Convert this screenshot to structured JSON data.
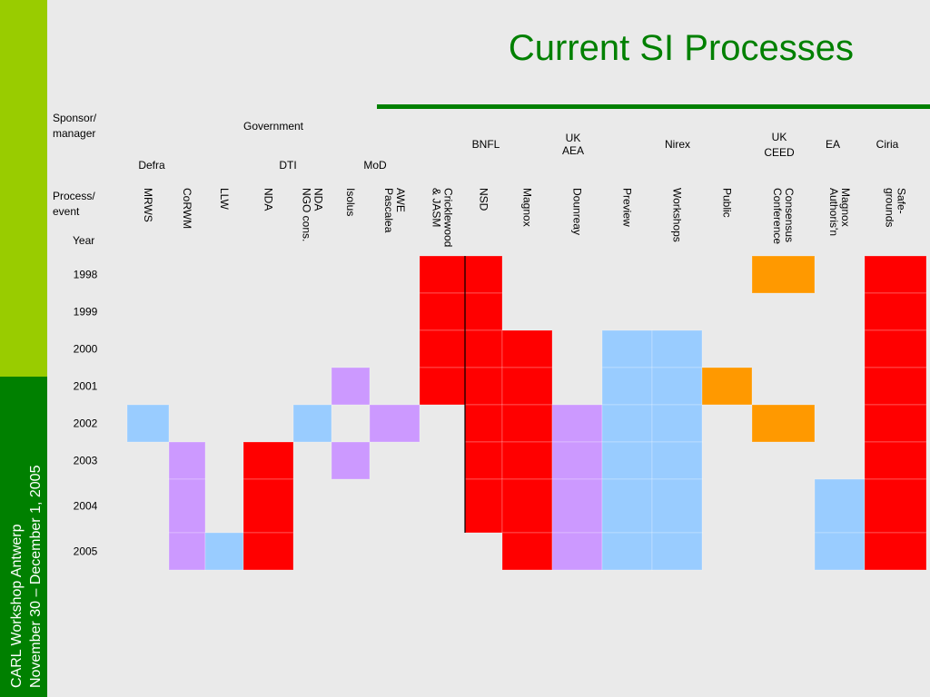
{
  "title": "Current SI Processes",
  "sidebar": {
    "line1": "CARL Workshop Antwerp",
    "line2": "November 30 – December 1, 2005"
  },
  "labels": {
    "sponsor": [
      "Sponsor/",
      "manager"
    ],
    "process": [
      "Process/",
      "event"
    ],
    "year": "Year"
  },
  "sponsors": {
    "government": "Government",
    "bnfl": "BNFL",
    "ukaea": [
      "UK",
      "AEA"
    ],
    "nirex": "Nirex",
    "ukceed": [
      "UK",
      "CEED"
    ],
    "ea": "EA",
    "ciria": "Ciria",
    "defra": "Defra",
    "dti": "DTI",
    "mod": "MoD"
  },
  "palette": {
    "R": "#ff0000",
    "O": "#ff9900",
    "P": "#cc99ff",
    "B": "#99ccff"
  },
  "columns": [
    [
      "MRWS"
    ],
    [
      "CoRWM"
    ],
    [
      "LLW"
    ],
    [
      "NDA"
    ],
    [
      "NDA",
      "NGO cons."
    ],
    [
      "Isolus"
    ],
    [
      "AWE",
      "Pascalea"
    ],
    [
      "Cricklewood",
      "& JASM"
    ],
    [
      "NSD"
    ],
    [
      "Magnox"
    ],
    [
      "Dounreay"
    ],
    [
      "Preview"
    ],
    [
      "Workshops"
    ],
    [
      "Public"
    ],
    [
      "Consensus",
      "Conference"
    ],
    [
      "Magnox",
      "Authoris'n"
    ],
    [
      "Safe-",
      "grounds"
    ]
  ],
  "rows": [
    {
      "year": "1998",
      "cells": [
        null,
        null,
        null,
        null,
        null,
        null,
        null,
        "R",
        "R",
        null,
        null,
        null,
        null,
        null,
        "O",
        null,
        "R"
      ]
    },
    {
      "year": "1999",
      "cells": [
        null,
        null,
        null,
        null,
        null,
        null,
        null,
        "R",
        "R",
        null,
        null,
        null,
        null,
        null,
        null,
        null,
        "R"
      ]
    },
    {
      "year": "2000",
      "cells": [
        null,
        null,
        null,
        null,
        null,
        null,
        null,
        "R",
        "R",
        "R",
        null,
        "B",
        "B",
        null,
        null,
        null,
        "R"
      ]
    },
    {
      "year": "2001",
      "cells": [
        null,
        null,
        null,
        null,
        null,
        "P",
        null,
        "R",
        "R",
        "R",
        null,
        "B",
        "B",
        "O",
        null,
        null,
        "R"
      ]
    },
    {
      "year": "2002",
      "cells": [
        "B",
        null,
        null,
        null,
        "B",
        null,
        "P",
        null,
        "R",
        "R",
        "P",
        "B",
        "B",
        null,
        "O",
        null,
        "R"
      ]
    },
    {
      "year": "2003",
      "cells": [
        null,
        "P",
        null,
        "R",
        null,
        "P",
        null,
        null,
        "R",
        "R",
        "P",
        "B",
        "B",
        null,
        null,
        null,
        "R"
      ]
    },
    {
      "year": "2004",
      "cells": [
        null,
        "P",
        null,
        "R",
        null,
        null,
        null,
        null,
        "R",
        "R",
        "P",
        "B",
        "B",
        null,
        null,
        "B",
        "R"
      ]
    },
    {
      "year": "2005",
      "cells": [
        null,
        "P",
        "B",
        "R",
        null,
        null,
        null,
        null,
        null,
        "R",
        "P",
        "B",
        "B",
        null,
        null,
        "B",
        "R"
      ]
    }
  ]
}
